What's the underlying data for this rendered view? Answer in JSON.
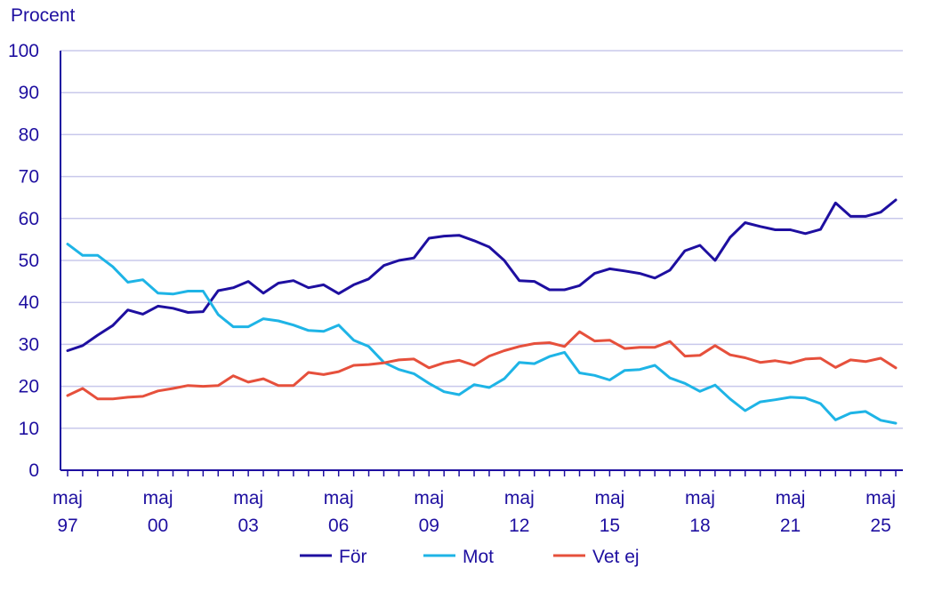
{
  "chart_data": {
    "type": "line",
    "ylabel": "Procent",
    "xlabel": "",
    "ylim": [
      0,
      100
    ],
    "yticks": [
      0,
      10,
      20,
      30,
      40,
      50,
      60,
      70,
      80,
      90,
      100
    ],
    "grid": true,
    "legend_position": "bottom",
    "x_tick_labels": [
      {
        "month": "maj",
        "year": "97"
      },
      {
        "month": "maj",
        "year": "00"
      },
      {
        "month": "maj",
        "year": "03"
      },
      {
        "month": "maj",
        "year": "06"
      },
      {
        "month": "maj",
        "year": "09"
      },
      {
        "month": "maj",
        "year": "12"
      },
      {
        "month": "maj",
        "year": "15"
      },
      {
        "month": "maj",
        "year": "18"
      },
      {
        "month": "maj",
        "year": "21"
      },
      {
        "month": "maj",
        "year": "25"
      }
    ],
    "series": [
      {
        "name": "För",
        "color": "#1e0fa0",
        "values": [
          28.5,
          29.7,
          32.2,
          34.5,
          38.2,
          37.2,
          39.1,
          38.6,
          37.6,
          37.8,
          42.8,
          43.5,
          45.0,
          42.2,
          44.6,
          45.2,
          43.5,
          44.2,
          42.1,
          44.2,
          45.6,
          48.8,
          50.0,
          50.6,
          55.3,
          55.8,
          56.0,
          54.7,
          53.2,
          50.0,
          45.2,
          45.0,
          43.0,
          43.0,
          44.0,
          46.9,
          48.0,
          47.5,
          46.9,
          45.8,
          47.7,
          52.3,
          53.6,
          50.0,
          55.5,
          59.0,
          58.1,
          57.3,
          57.3,
          56.4,
          57.4,
          63.7,
          60.5,
          60.5,
          61.5,
          64.4
        ]
      },
      {
        "name": "Mot",
        "color": "#1eb4e6",
        "values": [
          53.9,
          51.2,
          51.2,
          48.5,
          44.8,
          45.4,
          42.2,
          42.0,
          42.7,
          42.7,
          37.1,
          34.2,
          34.2,
          36.1,
          35.6,
          34.6,
          33.3,
          33.1,
          34.6,
          31.0,
          29.5,
          25.7,
          24.0,
          23.0,
          20.7,
          18.7,
          18.0,
          20.4,
          19.7,
          21.8,
          25.7,
          25.4,
          27.1,
          28.1,
          23.2,
          22.6,
          21.5,
          23.8,
          24.0,
          25.0,
          22.0,
          20.7,
          18.8,
          20.3,
          17.0,
          14.2,
          16.3,
          16.8,
          17.4,
          17.2,
          15.9,
          12.0,
          13.6,
          14.0,
          11.9,
          11.2
        ]
      },
      {
        "name": "Vet ej",
        "color": "#e6503c",
        "values": [
          17.8,
          19.5,
          17.0,
          17.0,
          17.4,
          17.6,
          18.9,
          19.5,
          20.2,
          20.0,
          20.2,
          22.5,
          21.0,
          21.8,
          20.2,
          20.2,
          23.3,
          22.8,
          23.5,
          25.0,
          25.2,
          25.6,
          26.3,
          26.5,
          24.4,
          25.6,
          26.2,
          25.0,
          27.2,
          28.5,
          29.5,
          30.2,
          30.4,
          29.5,
          33.0,
          30.8,
          31.0,
          29.0,
          29.3,
          29.3,
          30.7,
          27.2,
          27.4,
          29.7,
          27.5,
          26.8,
          25.7,
          26.1,
          25.5,
          26.5,
          26.7,
          24.5,
          26.3,
          25.9,
          26.7,
          24.4
        ]
      }
    ]
  }
}
